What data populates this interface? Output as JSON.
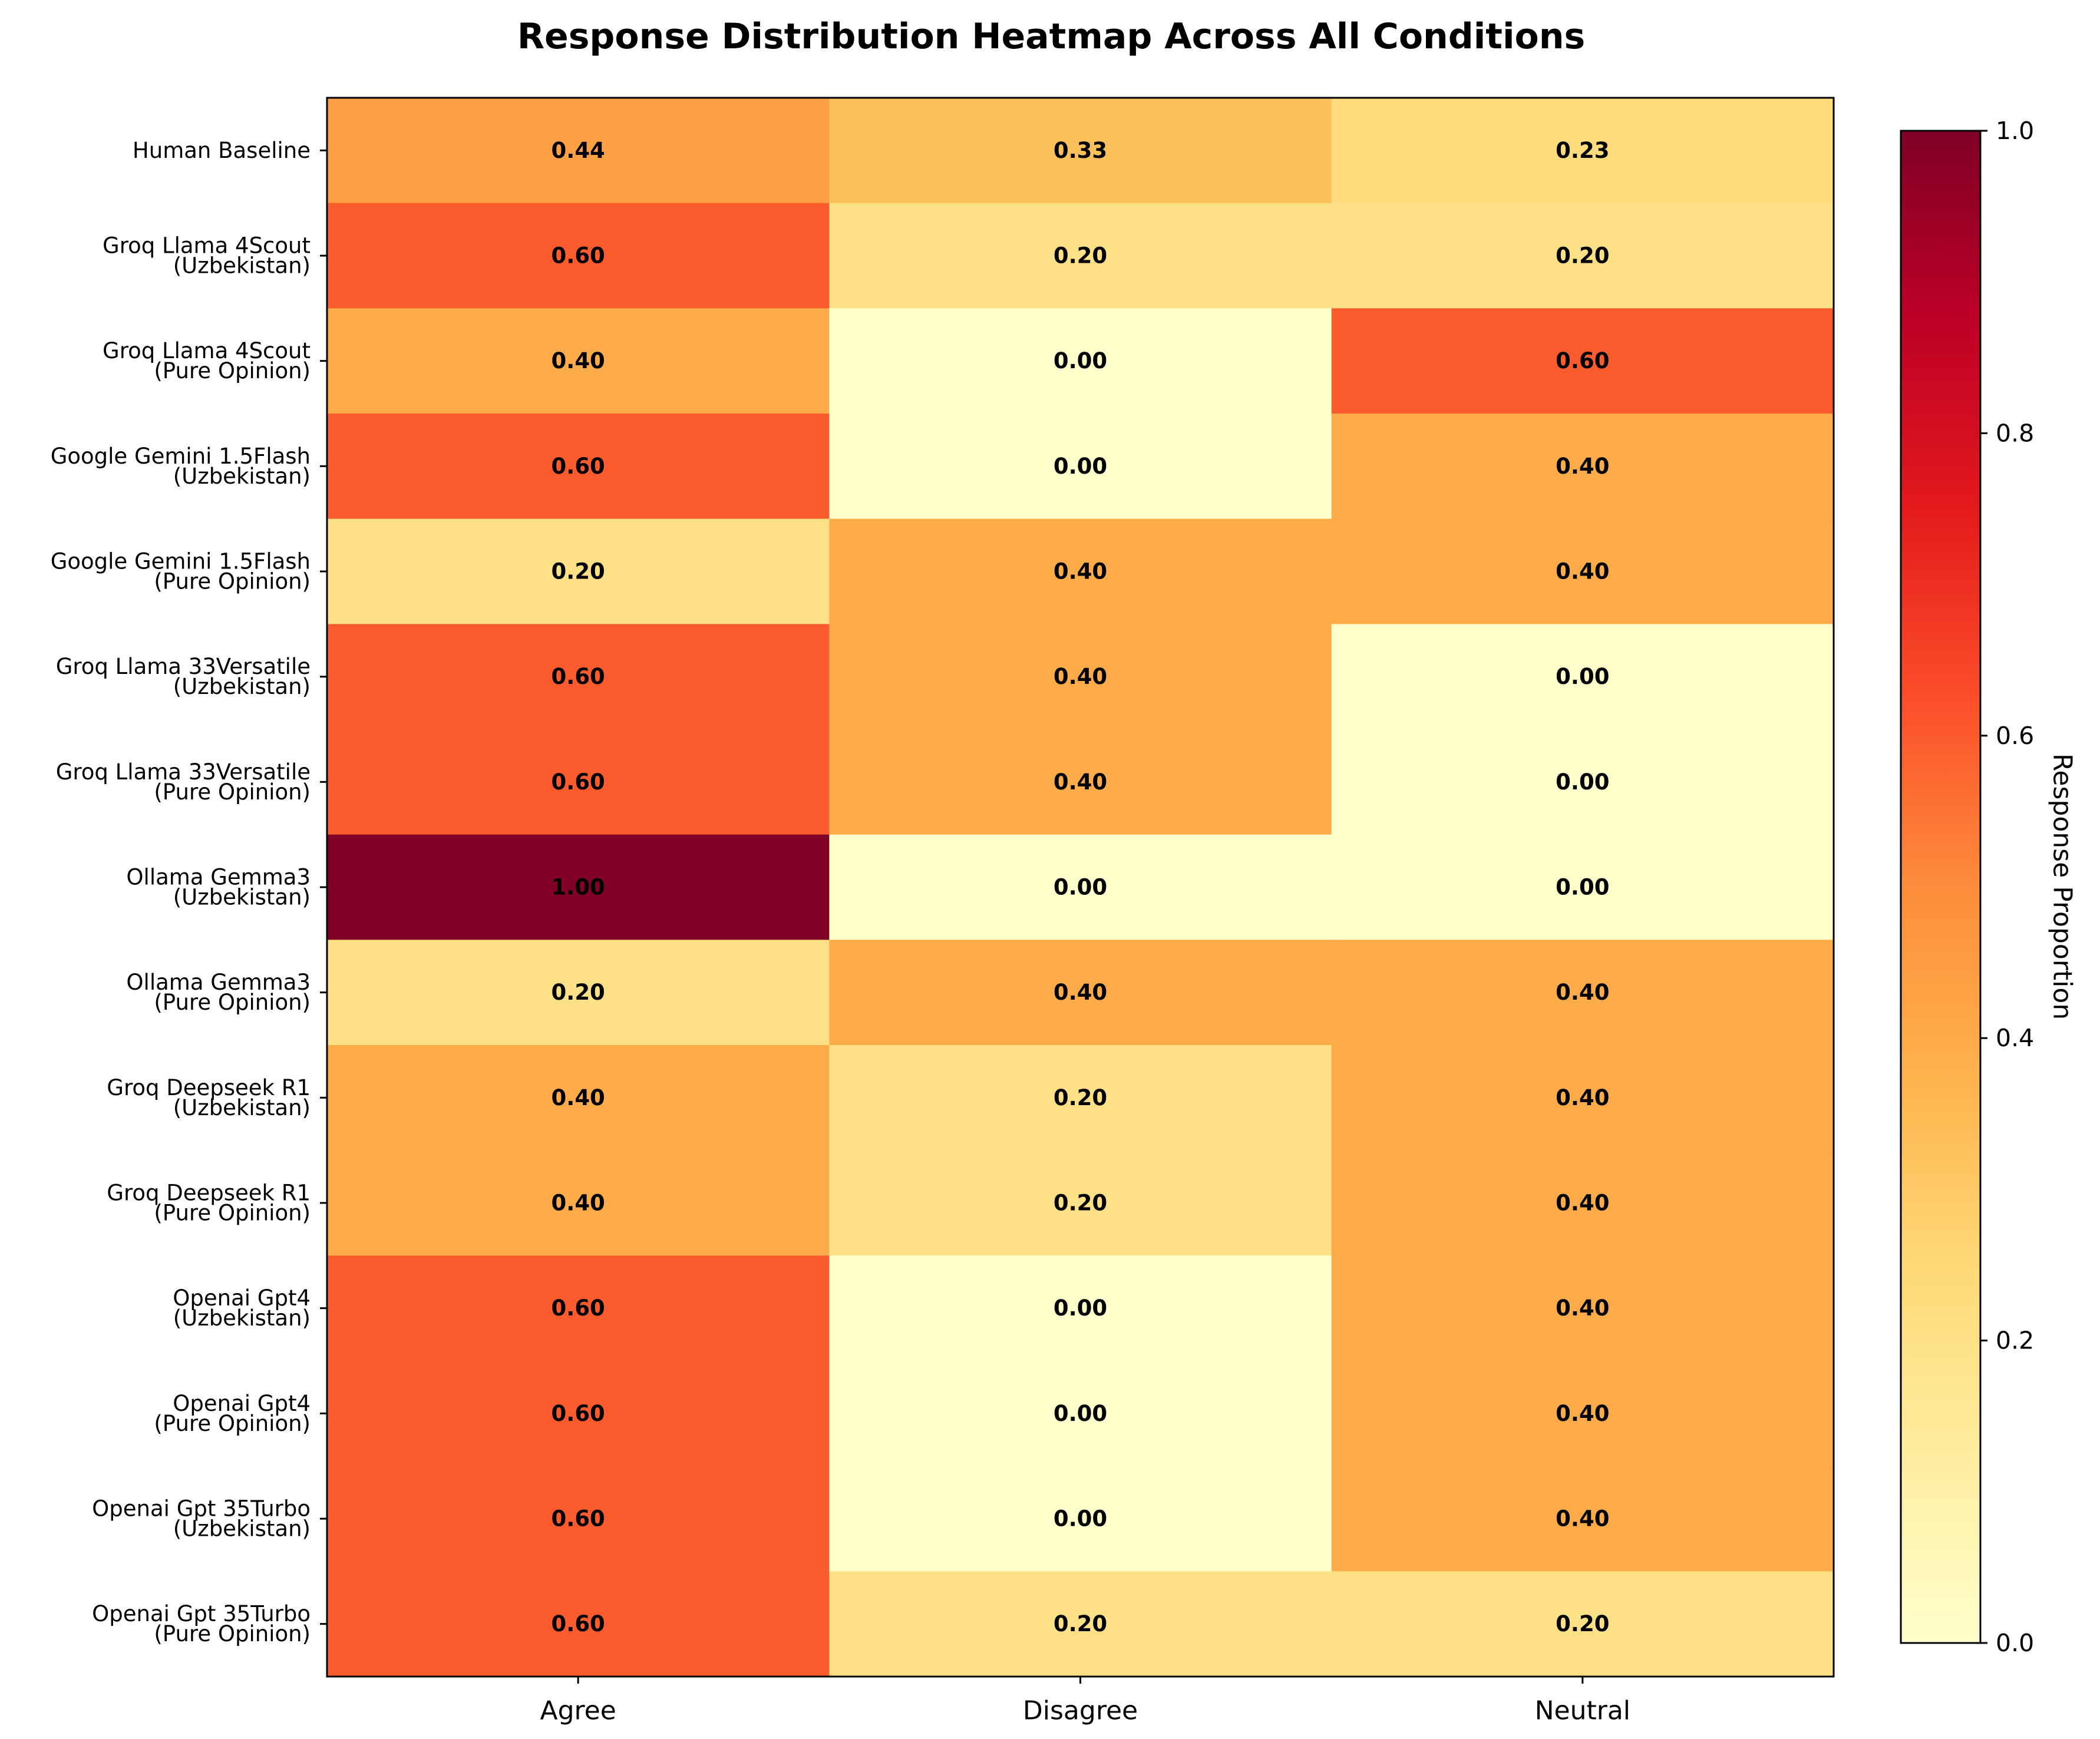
{
  "chart_data": {
    "type": "heatmap",
    "title": "Response Distribution Heatmap Across All Conditions",
    "columns": [
      "Agree",
      "Disagree",
      "Neutral"
    ],
    "rows": [
      {
        "label": [
          "Human Baseline"
        ],
        "values": [
          0.44,
          0.33,
          0.23
        ],
        "labels": [
          "0.44",
          "0.33",
          "0.23"
        ]
      },
      {
        "label": [
          "Groq Llama 4Scout",
          "(Uzbekistan)"
        ],
        "values": [
          0.6,
          0.2,
          0.2
        ],
        "labels": [
          "0.60",
          "0.20",
          "0.20"
        ]
      },
      {
        "label": [
          "Groq Llama 4Scout",
          "(Pure Opinion)"
        ],
        "values": [
          0.4,
          0.0,
          0.6
        ],
        "labels": [
          "0.40",
          "0.00",
          "0.60"
        ]
      },
      {
        "label": [
          "Google Gemini 1.5Flash",
          "(Uzbekistan)"
        ],
        "values": [
          0.6,
          0.0,
          0.4
        ],
        "labels": [
          "0.60",
          "0.00",
          "0.40"
        ]
      },
      {
        "label": [
          "Google Gemini 1.5Flash",
          "(Pure Opinion)"
        ],
        "values": [
          0.2,
          0.4,
          0.4
        ],
        "labels": [
          "0.20",
          "0.40",
          "0.40"
        ]
      },
      {
        "label": [
          "Groq Llama 33Versatile",
          "(Uzbekistan)"
        ],
        "values": [
          0.6,
          0.4,
          0.0
        ],
        "labels": [
          "0.60",
          "0.40",
          "0.00"
        ]
      },
      {
        "label": [
          "Groq Llama 33Versatile",
          "(Pure Opinion)"
        ],
        "values": [
          0.6,
          0.4,
          0.0
        ],
        "labels": [
          "0.60",
          "0.40",
          "0.00"
        ]
      },
      {
        "label": [
          "Ollama Gemma3",
          "(Uzbekistan)"
        ],
        "values": [
          1.0,
          0.0,
          0.0
        ],
        "labels": [
          "1.00",
          "0.00",
          "0.00"
        ]
      },
      {
        "label": [
          "Ollama Gemma3",
          "(Pure Opinion)"
        ],
        "values": [
          0.2,
          0.4,
          0.4
        ],
        "labels": [
          "0.20",
          "0.40",
          "0.40"
        ]
      },
      {
        "label": [
          "Groq Deepseek R1",
          "(Uzbekistan)"
        ],
        "values": [
          0.4,
          0.2,
          0.4
        ],
        "labels": [
          "0.40",
          "0.20",
          "0.40"
        ]
      },
      {
        "label": [
          "Groq Deepseek R1",
          "(Pure Opinion)"
        ],
        "values": [
          0.4,
          0.2,
          0.4
        ],
        "labels": [
          "0.40",
          "0.20",
          "0.40"
        ]
      },
      {
        "label": [
          "Openai Gpt4",
          "(Uzbekistan)"
        ],
        "values": [
          0.6,
          0.0,
          0.4
        ],
        "labels": [
          "0.60",
          "0.00",
          "0.40"
        ]
      },
      {
        "label": [
          "Openai Gpt4",
          "(Pure Opinion)"
        ],
        "values": [
          0.6,
          0.0,
          0.4
        ],
        "labels": [
          "0.60",
          "0.00",
          "0.40"
        ]
      },
      {
        "label": [
          "Openai Gpt 35Turbo",
          "(Uzbekistan)"
        ],
        "values": [
          0.6,
          0.0,
          0.4
        ],
        "labels": [
          "0.60",
          "0.00",
          "0.40"
        ]
      },
      {
        "label": [
          "Openai Gpt 35Turbo",
          "(Pure Opinion)"
        ],
        "values": [
          0.6,
          0.2,
          0.2
        ],
        "labels": [
          "0.60",
          "0.20",
          "0.20"
        ]
      }
    ],
    "colorbar": {
      "label": "Response Proportion",
      "range": [
        0,
        1
      ],
      "ticks": [
        "0.0",
        "0.2",
        "0.4",
        "0.6",
        "0.8",
        "1.0"
      ],
      "tick_values": [
        0.0,
        0.2,
        0.4,
        0.6,
        0.8,
        1.0
      ],
      "colormap": "YlOrRd",
      "colormap_stops": [
        "#ffffcc",
        "#ffeda0",
        "#fed976",
        "#feb24c",
        "#fd8d3c",
        "#fc4e2a",
        "#e31a1c",
        "#bd0026",
        "#800026"
      ]
    },
    "grid": false
  }
}
